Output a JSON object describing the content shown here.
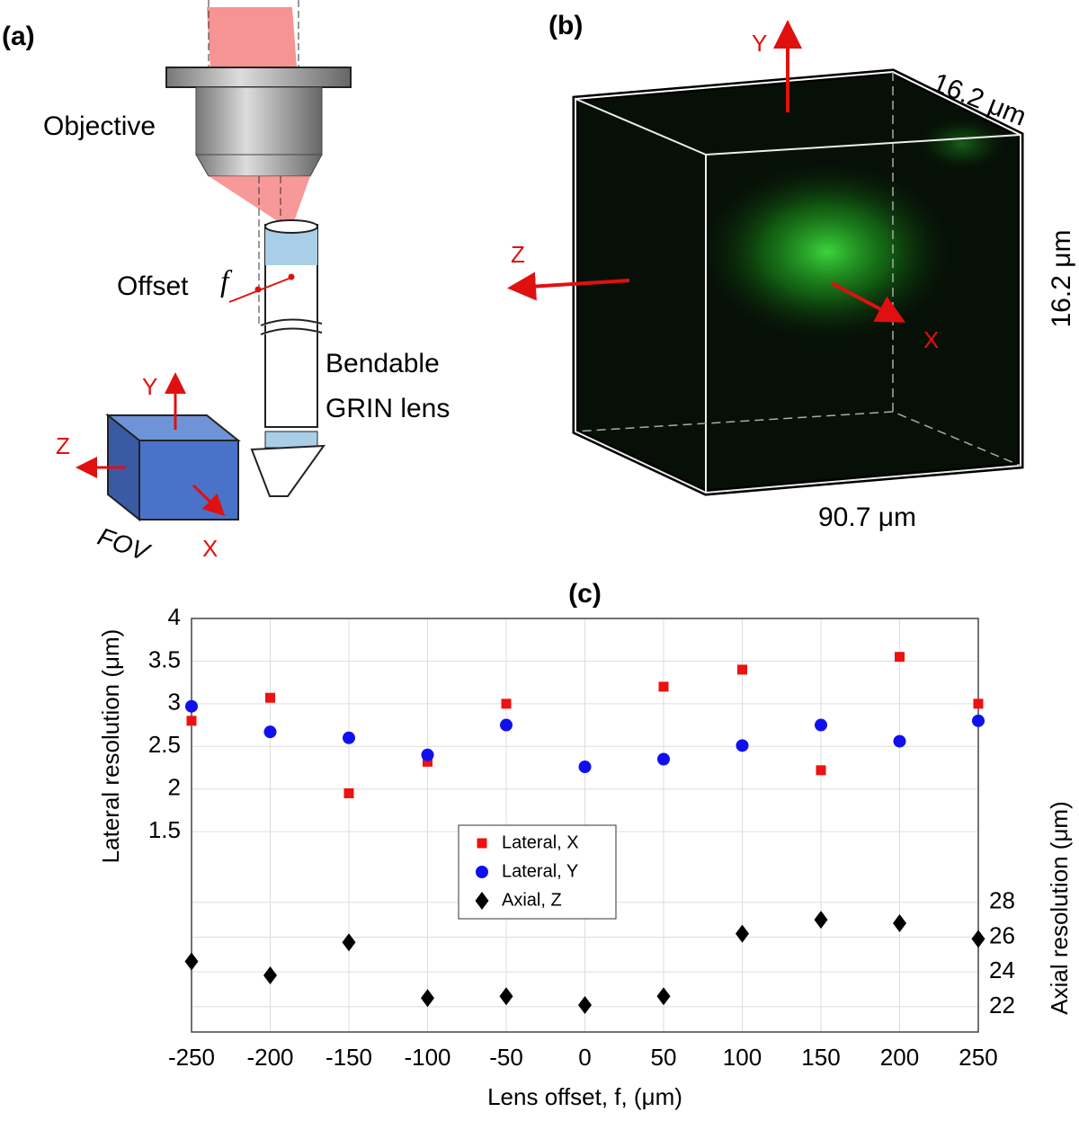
{
  "panel_a": {
    "label": "(a)",
    "objective": "Objective",
    "offset": "Offset",
    "f": "f",
    "lens": [
      "Bendable",
      "GRIN lens"
    ],
    "axis_y": "Y",
    "axis_z": "Z",
    "axis_x": "X",
    "fov": "FOV"
  },
  "panel_b": {
    "label": "(b)",
    "axis_y": "Y",
    "axis_z": "Z",
    "axis_x": "X",
    "depth": "16.2 μm",
    "height": "16.2 μm",
    "width": "90.7 μm"
  },
  "chart_data": {
    "type": "scatter",
    "title": "(c)",
    "x_label": "Lens offset, f, (μm)",
    "y_label": "Lateral resolution (μm)",
    "y2_label": "Axial resolution (μm)",
    "x": [
      -250,
      -200,
      -150,
      -100,
      -50,
      0,
      50,
      100,
      150,
      200,
      250
    ],
    "series": [
      {
        "name": "Lateral, X",
        "color": "#ee1111",
        "marker": "square",
        "values": [
          2.8,
          3.07,
          1.95,
          2.32,
          3.0,
          null,
          3.2,
          3.4,
          2.22,
          3.55,
          3.0
        ]
      },
      {
        "name": "Lateral, Y",
        "color": "#1010ee",
        "marker": "circle",
        "values": [
          2.97,
          2.67,
          2.6,
          2.4,
          2.75,
          2.26,
          2.35,
          2.51,
          2.75,
          2.56,
          2.8
        ]
      },
      {
        "name": "Axial, Z",
        "color": "#000000",
        "marker": "diamond",
        "axis": "y2",
        "values": [
          24.6,
          23.8,
          25.7,
          22.5,
          22.6,
          22.1,
          22.6,
          26.2,
          27.0,
          26.8,
          25.9
        ]
      }
    ],
    "xlim": [
      -250,
      250
    ],
    "xticks": [
      -250,
      -200,
      -150,
      -100,
      -50,
      0,
      50,
      100,
      150,
      200,
      250
    ],
    "ylim": [
      -0.85,
      4
    ],
    "yticks": [
      1.5,
      2,
      2.5,
      3,
      3.5,
      4
    ],
    "y2lim": [
      20.55,
      44.3
    ],
    "y2ticks": [
      22,
      24,
      26,
      28
    ],
    "grid": true
  }
}
